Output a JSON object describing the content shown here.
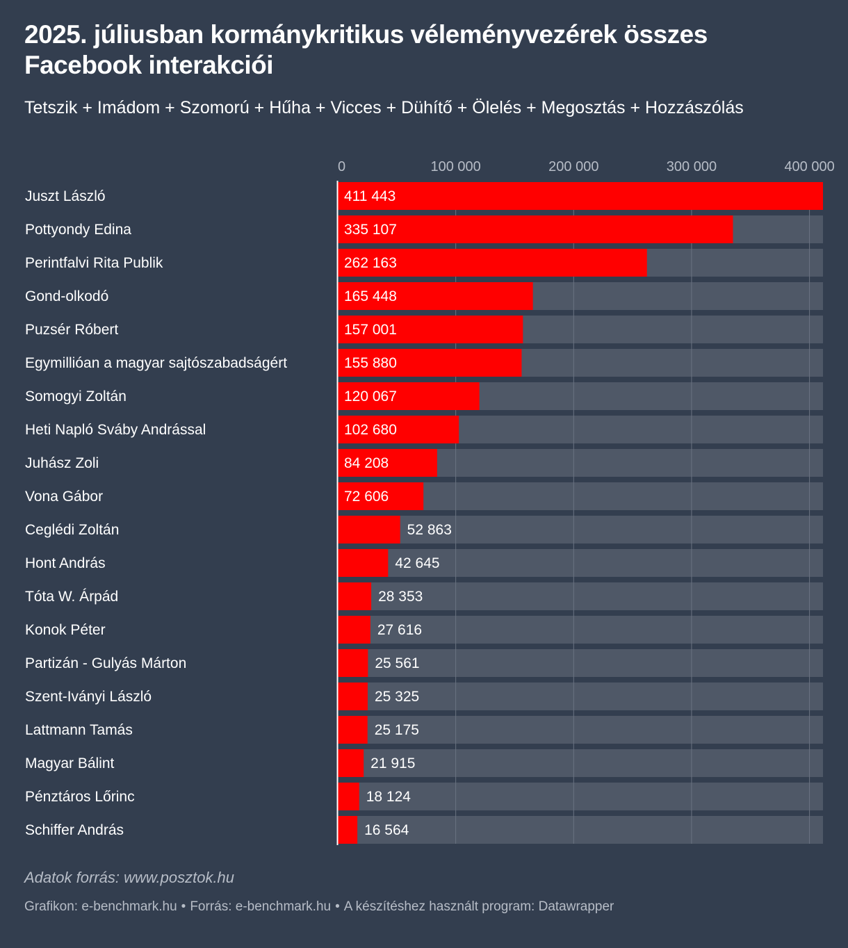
{
  "header": {
    "title": "2025. júliusban kormánykritikus véleményvezérek összes Facebook interakciói",
    "subtitle": "Tetszik + Imádom + Szomorú + Hűha + Vicces + Dühítő + Ölelés + Megosztás + Hozzászólás"
  },
  "colors": {
    "background": "#333e4f",
    "bar": "#ff0000",
    "track": "#4f5867",
    "text": "#ffffff",
    "muted": "#b7bdc7"
  },
  "chart_data": {
    "type": "bar",
    "orientation": "horizontal",
    "categories": [
      "Juszt László",
      "Pottyondy Edina",
      "Perintfalvi Rita Publik",
      "Gond-olkodó",
      "Puzsér Róbert",
      "Egymillióan a magyar sajtószabadságért",
      "Somogyi Zoltán",
      "Heti Napló Sváby Andrással",
      "Juhász Zoli",
      "Vona Gábor",
      "Ceglédi Zoltán",
      "Hont András",
      "Tóta W. Árpád",
      "Konok Péter",
      "Partizán - Gulyás Márton",
      "Szent-Iványi László",
      "Lattmann Tamás",
      "Magyar Bálint",
      "Pénztáros Lőrinc",
      "Schiffer András"
    ],
    "values": [
      411443,
      335107,
      262163,
      165448,
      157001,
      155880,
      120067,
      102680,
      84208,
      72606,
      52863,
      42645,
      28353,
      27616,
      25561,
      25325,
      25175,
      21915,
      18124,
      16564
    ],
    "value_labels": [
      "411 443",
      "335 107",
      "262 163",
      "165 448",
      "157 001",
      "155 880",
      "120 067",
      "102 680",
      "84 208",
      "72 606",
      "52 863",
      "42 645",
      "28 353",
      "27 616",
      "25 561",
      "25 325",
      "25 175",
      "21 915",
      "18 124",
      "16 564"
    ],
    "x_ticks": [
      0,
      100000,
      200000,
      300000,
      400000
    ],
    "x_tick_labels": [
      "0",
      "100 000",
      "200 000",
      "300 000",
      "400 000"
    ],
    "xlim": [
      0,
      411443
    ],
    "grid": true,
    "legend": "none"
  },
  "footer": {
    "source_note": "Adatok forrás: www.posztok.hu",
    "credit": "Grafikon: e-benchmark.hu",
    "source": "Forrás: e-benchmark.hu",
    "tool": "A készítéshez használt program: Datawrapper",
    "separator": "•"
  }
}
